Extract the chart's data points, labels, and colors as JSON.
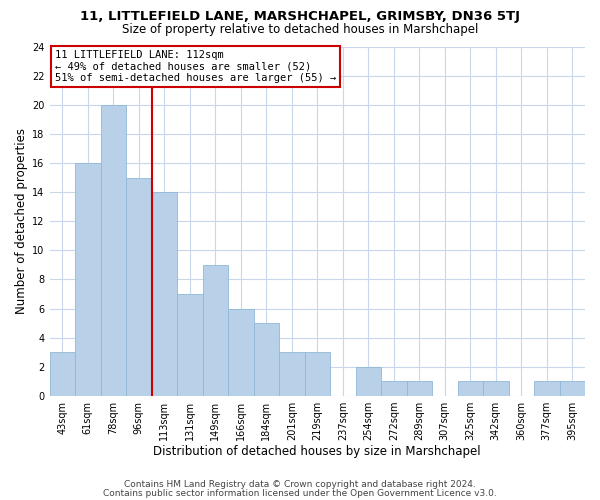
{
  "title": "11, LITTLEFIELD LANE, MARSHCHAPEL, GRIMSBY, DN36 5TJ",
  "subtitle": "Size of property relative to detached houses in Marshchapel",
  "xlabel": "Distribution of detached houses by size in Marshchapel",
  "ylabel": "Number of detached properties",
  "bar_labels": [
    "43sqm",
    "61sqm",
    "78sqm",
    "96sqm",
    "113sqm",
    "131sqm",
    "149sqm",
    "166sqm",
    "184sqm",
    "201sqm",
    "219sqm",
    "237sqm",
    "254sqm",
    "272sqm",
    "289sqm",
    "307sqm",
    "325sqm",
    "342sqm",
    "360sqm",
    "377sqm",
    "395sqm"
  ],
  "bar_values": [
    3,
    16,
    20,
    15,
    14,
    7,
    9,
    6,
    5,
    3,
    3,
    0,
    2,
    1,
    1,
    0,
    1,
    1,
    0,
    1,
    1
  ],
  "bar_color": "#b8d0e8",
  "bar_edge_color": "#90b8d8",
  "vline_color": "#cc0000",
  "annotation_title": "11 LITTLEFIELD LANE: 112sqm",
  "annotation_line1": "← 49% of detached houses are smaller (52)",
  "annotation_line2": "51% of semi-detached houses are larger (55) →",
  "annotation_box_color": "#ffffff",
  "annotation_box_edge": "#cc0000",
  "ylim": [
    0,
    24
  ],
  "yticks": [
    0,
    2,
    4,
    6,
    8,
    10,
    12,
    14,
    16,
    18,
    20,
    22,
    24
  ],
  "footer1": "Contains HM Land Registry data © Crown copyright and database right 2024.",
  "footer2": "Contains public sector information licensed under the Open Government Licence v3.0.",
  "background_color": "#ffffff",
  "grid_color": "#c8d8ea",
  "title_fontsize": 9.5,
  "subtitle_fontsize": 8.5,
  "axis_label_fontsize": 8.5,
  "tick_fontsize": 7,
  "annotation_fontsize": 7.5,
  "footer_fontsize": 6.5
}
